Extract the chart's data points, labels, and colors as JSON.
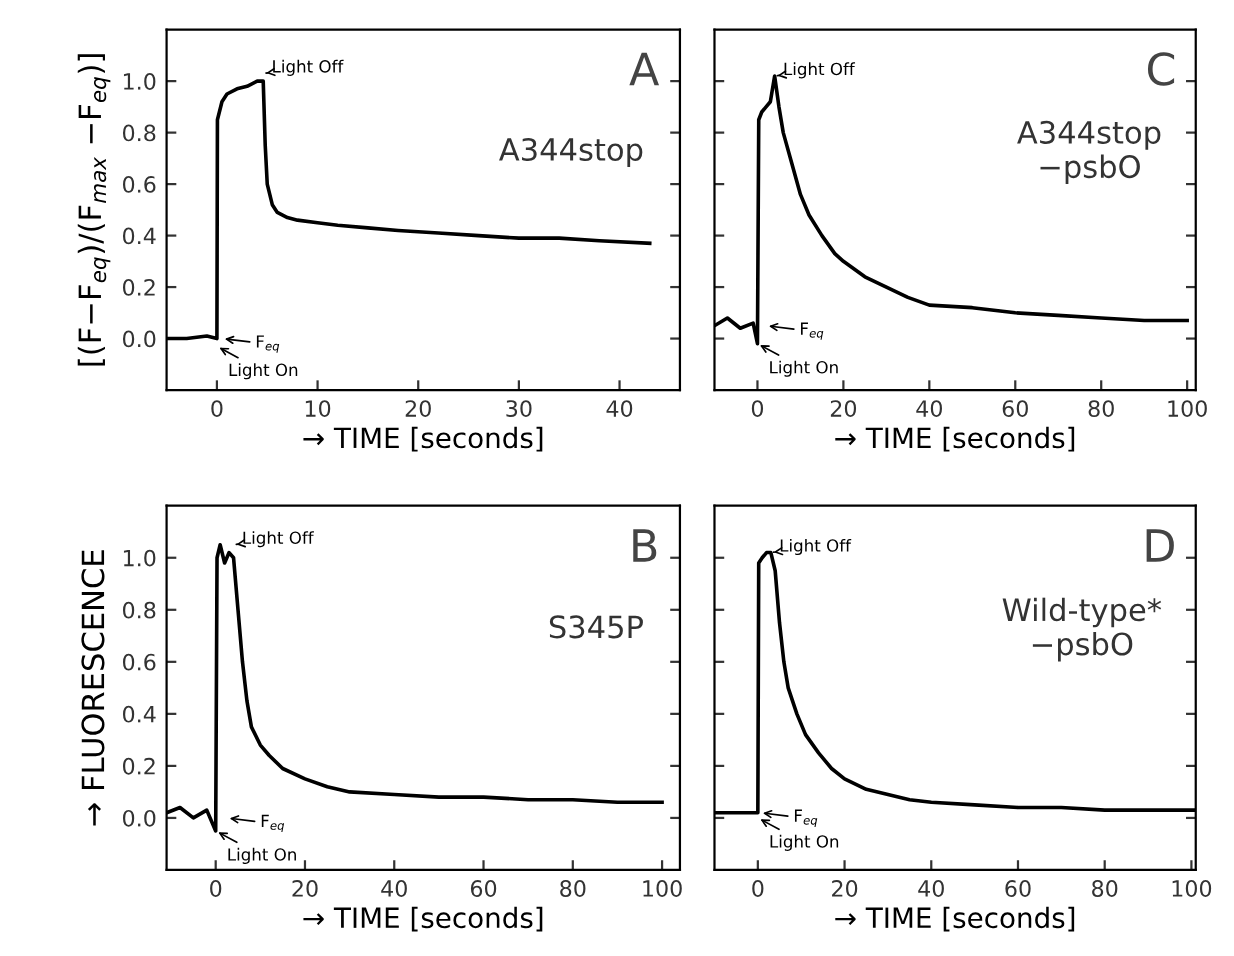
{
  "chart_data": [
    {
      "type": "line",
      "xlabel": "→ TIME [seconds]",
      "ylabel": "[(F−F$_{eq}$)/(F$_{max}$ −F$_{eq}$)]",
      "xlim": [
        -5,
        46
      ],
      "ylim": [
        -0.2,
        1.2
      ],
      "xticks": [
        0,
        10,
        20,
        30,
        40
      ],
      "yticks": [
        {
          "value": 0,
          "label": "0.0"
        },
        {
          "value": 0.2,
          "label": "0.2"
        },
        {
          "value": 0.4,
          "label": "0.4"
        },
        {
          "value": 0.6,
          "label": "0.6"
        },
        {
          "value": 0.8,
          "label": "0.8"
        },
        {
          "value": 1.0,
          "label": "1.0"
        }
      ],
      "grid": false,
      "legend": false,
      "series": [
        {
          "color": "#000000",
          "x": [
            -5,
            -3,
            -1,
            0,
            0.05,
            0.5,
            1,
            2,
            3,
            4,
            4.6,
            4.8,
            5,
            5.5,
            6,
            7,
            8,
            10,
            12,
            15,
            18,
            22,
            26,
            30,
            34,
            38,
            43
          ],
          "values": [
            0,
            0,
            0.01,
            0,
            0.85,
            0.92,
            0.95,
            0.97,
            0.98,
            1.0,
            1.0,
            0.75,
            0.6,
            0.52,
            0.49,
            0.47,
            0.46,
            0.45,
            0.44,
            0.43,
            0.42,
            0.41,
            0.4,
            0.39,
            0.39,
            0.38,
            0.37
          ]
        }
      ],
      "annotations": [
        "A",
        "A344stop",
        {
          "text": "Light Off",
          "x": 4.6,
          "y": 1.03
        },
        {
          "text": "F$_{eq}$",
          "x": 0.5,
          "y": 0
        },
        {
          "text": "Light On",
          "x": 0,
          "y": -0.03
        }
      ]
    },
    {
      "type": "line",
      "xlabel": "→ TIME [seconds]",
      "xlim": [
        -10,
        102
      ],
      "ylim": [
        -0.2,
        1.2
      ],
      "xticks": [
        0,
        20,
        40,
        60,
        80,
        100
      ],
      "yticks": [
        0,
        0.2,
        0.4,
        0.6,
        0.8,
        1.0
      ],
      "tick_labels": "x",
      "grid": false,
      "legend": false,
      "series": [
        {
          "color": "#000000",
          "x": [
            -10,
            -7,
            -4,
            -1,
            0,
            0.3,
            1,
            2,
            3,
            4,
            5,
            6,
            8,
            10,
            12,
            15,
            18,
            20,
            25,
            30,
            35,
            40,
            50,
            60,
            70,
            80,
            90,
            100
          ],
          "values": [
            0.05,
            0.08,
            0.04,
            0.06,
            -0.02,
            0.85,
            0.88,
            0.9,
            0.92,
            1.02,
            0.9,
            0.8,
            0.68,
            0.56,
            0.48,
            0.4,
            0.33,
            0.3,
            0.24,
            0.2,
            0.16,
            0.13,
            0.12,
            0.1,
            0.09,
            0.08,
            0.07,
            0.07
          ]
        }
      ],
      "annotations": [
        "C",
        "A344stop\n−psbO",
        {
          "text": "Light Off",
          "x": 4,
          "y": 1.02
        },
        {
          "text": "F$_{eq}$",
          "x": 2,
          "y": 0.05
        },
        {
          "text": "Light On",
          "x": 0,
          "y": -0.02
        }
      ]
    },
    {
      "type": "line",
      "xlabel": "→ TIME [seconds]",
      "ylabel": "→ FLUORESCENCE",
      "xlim": [
        -11,
        104
      ],
      "ylim": [
        -0.2,
        1.2
      ],
      "xticks": [
        0,
        20,
        40,
        60,
        80,
        100
      ],
      "yticks": [
        {
          "value": 0,
          "label": "0.0"
        },
        {
          "value": 0.2,
          "label": "0.2"
        },
        {
          "value": 0.4,
          "label": "0.4"
        },
        {
          "value": 0.6,
          "label": "0.6"
        },
        {
          "value": 0.8,
          "label": "0.8"
        },
        {
          "value": 1.0,
          "label": "1.0"
        }
      ],
      "grid": false,
      "legend": false,
      "series": [
        {
          "color": "#000000",
          "x": [
            -11,
            -8,
            -5,
            -2,
            0,
            0.3,
            1,
            2,
            3,
            4,
            5,
            6,
            7,
            8,
            10,
            12,
            15,
            20,
            25,
            30,
            40,
            50,
            60,
            70,
            80,
            90,
            100
          ],
          "values": [
            0.02,
            0.04,
            0,
            0.03,
            -0.05,
            1.0,
            1.05,
            0.98,
            1.02,
            1.0,
            0.8,
            0.6,
            0.45,
            0.35,
            0.28,
            0.24,
            0.19,
            0.15,
            0.12,
            0.1,
            0.09,
            0.08,
            0.08,
            0.07,
            0.07,
            0.06,
            0.06
          ]
        }
      ],
      "annotations": [
        "B",
        "S345P",
        {
          "text": "Light Off",
          "x": 4,
          "y": 1.05
        },
        {
          "text": "F$_{eq}$",
          "x": 2.5,
          "y": 0
        },
        {
          "text": "Light On",
          "x": 0,
          "y": -0.05
        }
      ]
    },
    {
      "type": "line",
      "xlabel": "→ TIME [seconds]",
      "xlim": [
        -10,
        101
      ],
      "ylim": [
        -0.2,
        1.2
      ],
      "xticks": [
        0,
        20,
        40,
        60,
        80,
        100
      ],
      "yticks": [
        0,
        0.2,
        0.4,
        0.6,
        0.8,
        1.0
      ],
      "tick_labels": "x",
      "grid": false,
      "legend": false,
      "series": [
        {
          "color": "#000000",
          "x": [
            -10,
            -5,
            -1,
            0,
            0.2,
            1,
            2,
            3,
            4,
            5,
            6,
            7,
            9,
            11,
            14,
            17,
            20,
            25,
            30,
            35,
            40,
            50,
            60,
            70,
            80,
            90,
            101
          ],
          "values": [
            0.02,
            0.02,
            0.02,
            0.02,
            0.98,
            1.0,
            1.02,
            1.02,
            0.95,
            0.75,
            0.6,
            0.5,
            0.4,
            0.32,
            0.25,
            0.19,
            0.15,
            0.11,
            0.09,
            0.07,
            0.06,
            0.05,
            0.04,
            0.04,
            0.03,
            0.03,
            0.03
          ]
        }
      ],
      "annotations": [
        "D",
        "Wild-type*\n−psbO",
        {
          "text": "Light Off",
          "x": 3,
          "y": 1.02
        },
        {
          "text": "F$_{eq}$",
          "x": 0.5,
          "y": 0.02
        },
        {
          "text": "Light On",
          "x": 0,
          "y": 0.0
        }
      ]
    }
  ]
}
